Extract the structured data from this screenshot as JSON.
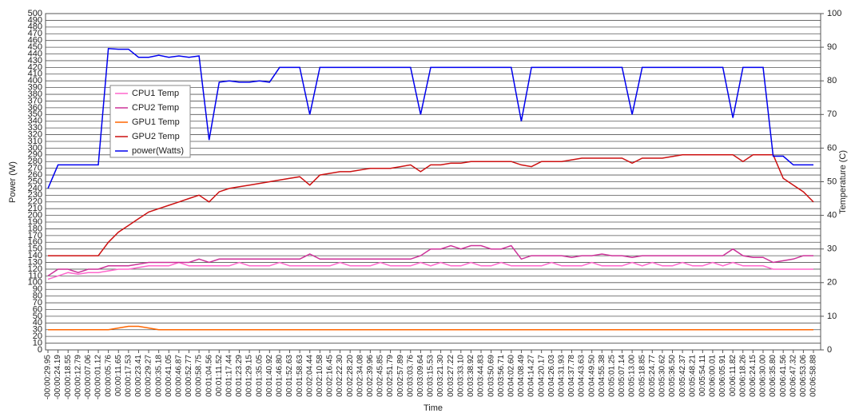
{
  "chart_data": {
    "type": "line",
    "xlabel": "Time",
    "ylabel": "Power (W)",
    "y2label": "Temperature (C)",
    "categories": [
      "-00:00:29.95",
      "-00:00:24.19",
      "-00:00:18.55",
      "-00:00:12.79",
      "-00:00:07.06",
      "-00:00:01.12",
      "00:00:05.76",
      "00:00:11.65",
      "00:00:17.53",
      "00:00:23.41",
      "00:00:29.27",
      "00:00:35.18",
      "00:00:41.05",
      "00:00:46.87",
      "00:00:52.77",
      "00:00:58.75",
      "00:01:04.56",
      "00:01:11.52",
      "00:01:17.44",
      "00:01:23.29",
      "00:01:29.15",
      "00:01:35.05",
      "00:01:40.92",
      "00:01:46.80",
      "00:01:52.63",
      "00:01:58.63",
      "00:02:04.44",
      "00:02:10.58",
      "00:02:16.45",
      "00:02:22.30",
      "00:02:28.20",
      "00:02:34.08",
      "00:02:39.96",
      "00:02:45.85",
      "00:02:51.79",
      "00:02:57.89",
      "00:03:03.76",
      "00:03:09.64",
      "00:03:15.53",
      "00:03:21.30",
      "00:03:27.22",
      "00:03:33.10",
      "00:03:38.92",
      "00:03:44.83",
      "00:03:50.69",
      "00:03:56.71",
      "00:04:02.60",
      "00:04:08.49",
      "00:04:14.27",
      "00:04:20.17",
      "00:04:26.03",
      "00:04:31.93",
      "00:04:37.78",
      "00:04:43.63",
      "00:04:49.50",
      "00:04:55.38",
      "00:05:01.25",
      "00:05:07.14",
      "00:05:13.00",
      "00:05:18.85",
      "00:05:24.77",
      "00:05:30.62",
      "00:05:36.50",
      "00:05:42.37",
      "00:05:48.21",
      "00:05:54.11",
      "00:06:00.01",
      "00:06:05.91",
      "00:06:11.82",
      "00:06:18.26",
      "00:06:24.15",
      "00:06:30.00",
      "00:06:35.80",
      "00:06:41.56",
      "00:06:47.32",
      "00:06:53.06",
      "00:06:58.88"
    ],
    "series": [
      {
        "name": "CPU1 Temp",
        "color": "#ff66cc",
        "axis": "y2",
        "values": [
          21,
          22,
          23,
          22.5,
          23,
          23,
          23.5,
          24,
          24,
          24.5,
          25,
          25,
          25,
          26,
          25,
          25,
          25,
          25,
          25,
          26,
          25,
          25,
          25,
          26,
          25,
          25,
          25,
          25,
          25,
          26,
          25,
          25,
          25,
          26,
          25,
          25,
          25,
          26,
          25,
          26,
          25,
          25,
          26,
          25,
          25,
          26,
          25,
          25,
          25,
          25,
          26,
          25,
          25,
          25,
          26,
          25,
          25,
          25,
          26,
          25,
          26,
          25,
          25,
          26,
          25,
          25,
          26,
          25,
          26,
          25,
          25,
          25,
          24,
          24,
          24,
          24,
          24
        ]
      },
      {
        "name": "CPU2 Temp",
        "color": "#cc3399",
        "axis": "y2",
        "values": [
          22,
          24,
          24,
          23,
          24,
          24,
          25,
          25,
          25,
          25.5,
          26,
          26,
          26,
          26,
          26,
          27,
          26,
          27,
          27,
          27,
          27,
          27,
          27,
          27,
          27,
          27,
          28.5,
          27,
          27,
          27,
          27,
          27,
          27,
          27,
          27,
          27,
          27,
          28,
          30,
          30,
          31,
          30,
          31,
          31,
          30,
          30,
          31,
          27,
          28,
          28,
          28,
          28,
          27.5,
          28,
          28,
          28.5,
          28,
          28,
          27.5,
          28,
          28,
          28,
          28,
          28,
          28,
          28,
          28,
          28,
          30,
          28,
          27.5,
          27.5,
          26,
          26.5,
          27,
          28,
          28
        ]
      },
      {
        "name": "GPU1 Temp",
        "color": "#ff6600",
        "axis": "y2",
        "values": [
          6,
          6,
          6,
          6,
          6,
          6,
          6,
          6.5,
          7,
          7,
          6.5,
          6,
          6,
          6,
          6,
          6,
          6,
          6,
          6,
          6,
          6,
          6,
          6,
          6,
          6,
          6,
          6,
          6,
          6,
          6,
          6,
          6,
          6,
          6,
          6,
          6,
          6,
          6,
          6,
          6,
          6,
          6,
          6,
          6,
          6,
          6,
          6,
          6,
          6,
          6,
          6,
          6,
          6,
          6,
          6,
          6,
          6,
          6,
          6,
          6,
          6,
          6,
          6,
          6,
          6,
          6,
          6,
          6,
          6,
          6,
          6,
          6,
          6,
          6,
          6,
          6,
          6
        ]
      },
      {
        "name": "GPU2 Temp",
        "color": "#cc1111",
        "axis": "y2",
        "values": [
          28,
          28,
          28,
          28,
          28,
          28,
          32,
          35,
          37,
          39,
          41,
          42,
          43,
          44,
          45,
          46,
          44,
          47,
          48,
          48.5,
          49,
          49.5,
          50,
          50.5,
          51,
          51.5,
          49,
          52,
          52.5,
          53,
          53,
          53.5,
          54,
          54,
          54,
          54.5,
          55,
          53,
          55,
          55,
          55.5,
          55.5,
          56,
          56,
          56,
          56,
          56,
          55,
          54.5,
          56,
          56,
          56,
          56.5,
          57,
          57,
          57,
          57,
          57,
          55.5,
          57,
          57,
          57,
          57.5,
          58,
          58,
          58,
          58,
          58,
          58,
          56,
          58,
          58,
          58,
          51,
          49,
          47,
          44
        ]
      },
      {
        "name": "power(Watts)",
        "color": "#0000ee",
        "values": [
          240,
          275,
          275,
          275,
          275,
          275,
          448,
          447,
          447,
          435,
          435,
          438,
          435,
          437,
          435,
          437,
          312,
          398,
          400,
          398,
          398,
          400,
          398,
          420,
          420,
          420,
          350,
          420,
          420,
          420,
          420,
          420,
          420,
          420,
          420,
          420,
          420,
          350,
          420,
          420,
          420,
          420,
          420,
          420,
          420,
          420,
          420,
          340,
          420,
          420,
          420,
          420,
          420,
          420,
          420,
          420,
          420,
          420,
          350,
          420,
          420,
          420,
          420,
          420,
          420,
          420,
          420,
          420,
          345,
          420,
          420,
          420,
          288,
          288,
          275,
          275,
          275
        ]
      }
    ],
    "ylim": [
      0,
      500
    ],
    "yticks": [
      0,
      10,
      20,
      30,
      40,
      50,
      60,
      70,
      80,
      90,
      100,
      110,
      120,
      130,
      140,
      150,
      160,
      170,
      180,
      190,
      200,
      210,
      220,
      230,
      240,
      250,
      260,
      270,
      280,
      290,
      300,
      310,
      320,
      330,
      340,
      350,
      360,
      370,
      380,
      390,
      400,
      410,
      420,
      430,
      440,
      450,
      460,
      470,
      480,
      490,
      500
    ],
    "y2lim": [
      0,
      100
    ],
    "y2ticks": [
      0,
      10,
      20,
      30,
      40,
      50,
      60,
      70,
      80,
      90,
      100
    ],
    "grid": true
  }
}
